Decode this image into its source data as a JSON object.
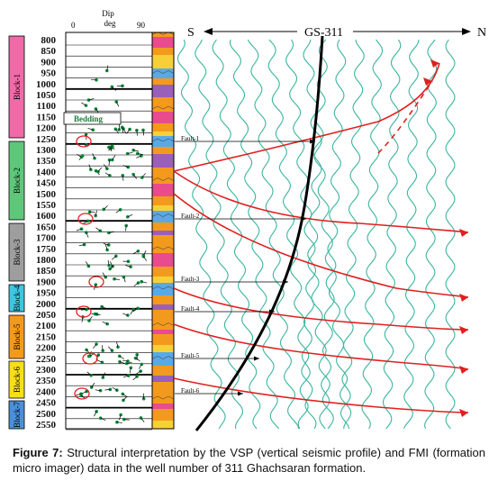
{
  "figure": {
    "dip_header": {
      "title_line1": "Dip",
      "title_line2": "deg",
      "min_label": "0",
      "max_label": "90"
    },
    "depths": [
      "800",
      "850",
      "900",
      "950",
      "1000",
      "1050",
      "1100",
      "1150",
      "1200",
      "1250",
      "1300",
      "1350",
      "1400",
      "1450",
      "1500",
      "1550",
      "1600",
      "1650",
      "1700",
      "1750",
      "1800",
      "1850",
      "1900",
      "1950",
      "2000",
      "2050",
      "2100",
      "2150",
      "2200",
      "2250",
      "2300",
      "2350",
      "2400",
      "2450",
      "2500",
      "2550"
    ],
    "blocks": [
      {
        "label": "Block-1",
        "color": "#f06aa8"
      },
      {
        "label": "Block-2",
        "color": "#5fc77a"
      },
      {
        "label": "Block-3",
        "color": "#9e9e9e"
      },
      {
        "label": "Block-4",
        "color": "#3ec5e0"
      },
      {
        "label": "Block-5",
        "color": "#f39a1e"
      },
      {
        "label": "Block-6",
        "color": "#f7df17"
      },
      {
        "label": "Block-7",
        "color": "#4a90d9"
      }
    ],
    "bedding_label": "Bedding",
    "faults": [
      "Fault-1",
      "Fault-2",
      "Fault-3",
      "Fault-4",
      "Fault-5",
      "Fault-6"
    ],
    "south_label": "S",
    "north_label": "N",
    "well_label": "GS-311",
    "colors": {
      "fault": "#e02020",
      "seismic": "#3bb5a0",
      "well": "#000000",
      "dip_points": "#0a8a3a"
    }
  },
  "caption": {
    "lead": "Figure 7:",
    "text": " Structural interpretation by the VSP (vertical seismic profile) and FMI (formation micro imager) data in the well number of 311 Ghachsaran formation."
  }
}
